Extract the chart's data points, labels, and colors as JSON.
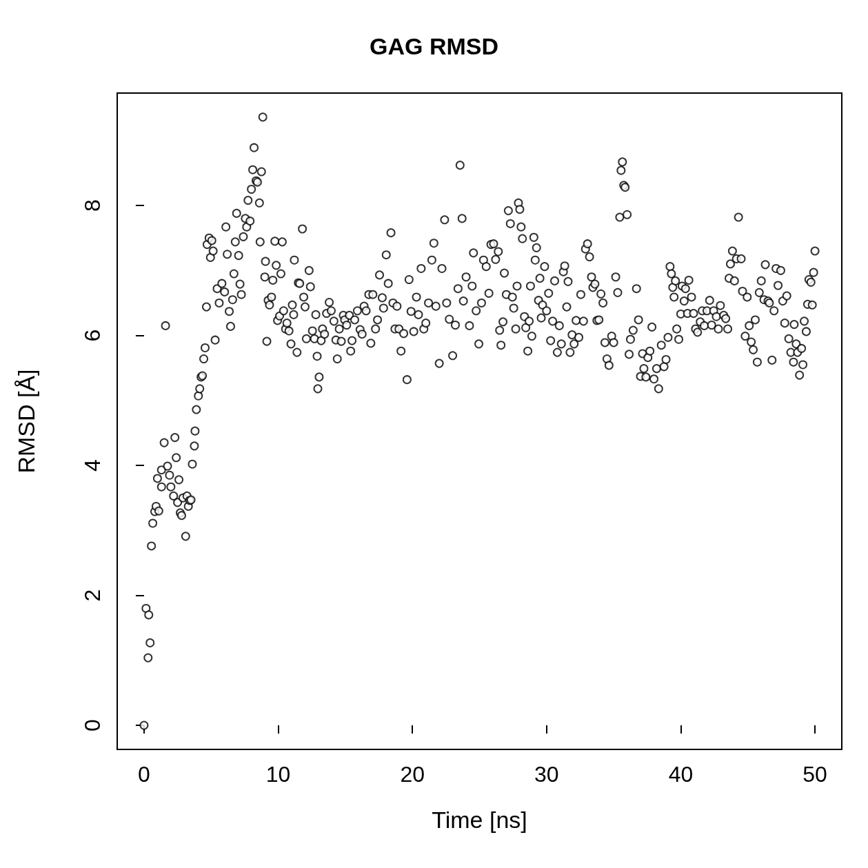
{
  "chart_data": {
    "type": "scatter",
    "title": "GAG RMSD",
    "xlabel": "Time [ns]",
    "ylabel": "RMSD [Å]",
    "marker": "circle",
    "color": "#000000",
    "xlim": [
      -2,
      52
    ],
    "ylim": [
      -0.37,
      9.73
    ],
    "xticks": [
      0,
      10,
      20,
      30,
      40,
      50
    ],
    "yticks": [
      0,
      2,
      4,
      6,
      8
    ],
    "x": [
      0,
      0.15,
      0.3,
      0.35,
      0.45,
      0.55,
      0.65,
      0.8,
      0.9,
      1.0,
      1.1,
      1.3,
      1.3,
      1.5,
      1.6,
      1.75,
      1.9,
      2.0,
      2.2,
      2.3,
      2.4,
      2.5,
      2.6,
      2.7,
      2.8,
      2.9,
      3.1,
      3.2,
      3.3,
      3.4,
      3.5,
      3.6,
      3.75,
      3.8,
      3.9,
      4.05,
      4.15,
      4.25,
      4.35,
      4.45,
      4.55,
      4.65,
      4.7,
      4.85,
      4.95,
      5.05,
      5.15,
      5.3,
      5.45,
      5.6,
      5.8,
      6.0,
      6.1,
      6.2,
      6.35,
      6.45,
      6.6,
      6.7,
      6.8,
      6.9,
      7.05,
      7.15,
      7.25,
      7.4,
      7.55,
      7.65,
      7.75,
      7.9,
      8.0,
      8.1,
      8.2,
      8.35,
      8.45,
      8.6,
      8.65,
      8.75,
      8.85,
      9.0,
      9.05,
      9.15,
      9.25,
      9.35,
      9.5,
      9.6,
      9.75,
      9.85,
      9.95,
      10.1,
      10.2,
      10.3,
      10.4,
      10.55,
      10.65,
      10.8,
      10.95,
      11.05,
      11.15,
      11.2,
      11.4,
      11.5,
      11.6,
      11.8,
      11.9,
      12.0,
      12.1,
      12.3,
      12.4,
      12.55,
      12.7,
      12.8,
      12.9,
      12.95,
      13.05,
      13.2,
      13.3,
      13.45,
      13.6,
      13.8,
      13.95,
      14.15,
      14.3,
      14.4,
      14.55,
      14.7,
      14.85,
      14.95,
      15.1,
      15.3,
      15.4,
      15.5,
      15.7,
      15.9,
      16.1,
      16.25,
      16.4,
      16.55,
      16.75,
      16.9,
      17.05,
      17.25,
      17.4,
      17.55,
      17.75,
      17.85,
      18.05,
      18.2,
      18.4,
      18.55,
      18.7,
      18.85,
      19.0,
      19.15,
      19.35,
      19.6,
      19.75,
      19.9,
      20.1,
      20.3,
      20.45,
      20.65,
      20.85,
      21.0,
      21.2,
      21.45,
      21.6,
      21.75,
      22.0,
      22.2,
      22.4,
      22.55,
      22.75,
      23.0,
      23.2,
      23.4,
      23.55,
      23.7,
      23.8,
      24.0,
      24.25,
      24.45,
      24.55,
      24.75,
      24.95,
      25.15,
      25.3,
      25.5,
      25.7,
      25.85,
      26.05,
      26.2,
      26.4,
      26.5,
      26.6,
      26.75,
      26.85,
      27.0,
      27.15,
      27.3,
      27.45,
      27.55,
      27.7,
      27.8,
      27.9,
      28.0,
      28.1,
      28.2,
      28.35,
      28.45,
      28.6,
      28.7,
      28.8,
      28.9,
      29.05,
      29.15,
      29.25,
      29.4,
      29.5,
      29.6,
      29.7,
      29.85,
      30.0,
      30.15,
      30.3,
      30.45,
      30.6,
      30.8,
      30.95,
      31.1,
      31.25,
      31.35,
      31.5,
      31.6,
      31.75,
      31.9,
      32.05,
      32.2,
      32.4,
      32.55,
      32.75,
      32.9,
      33.05,
      33.2,
      33.35,
      33.45,
      33.6,
      33.75,
      33.9,
      34.05,
      34.2,
      34.35,
      34.5,
      34.65,
      34.85,
      35.0,
      35.15,
      35.3,
      35.45,
      35.55,
      35.65,
      35.75,
      35.85,
      36.0,
      36.15,
      36.25,
      36.45,
      36.7,
      36.85,
      37.0,
      37.15,
      37.25,
      37.4,
      37.55,
      37.7,
      37.85,
      38.0,
      38.2,
      38.35,
      38.55,
      38.75,
      38.9,
      39.05,
      39.2,
      39.3,
      39.4,
      39.5,
      39.6,
      39.7,
      39.85,
      40.0,
      40.1,
      40.25,
      40.35,
      40.5,
      40.6,
      40.8,
      40.95,
      41.1,
      41.25,
      41.45,
      41.6,
      41.75,
      41.95,
      42.15,
      42.3,
      42.45,
      42.65,
      42.8,
      42.95,
      43.2,
      43.35,
      43.5,
      43.6,
      43.7,
      43.85,
      44.0,
      44.15,
      44.3,
      44.5,
      44.6,
      44.8,
      44.95,
      45.1,
      45.25,
      45.4,
      45.55,
      45.7,
      45.85,
      46.0,
      46.2,
      46.3,
      46.5,
      46.6,
      46.8,
      46.95,
      47.1,
      47.25,
      47.45,
      47.6,
      47.75,
      47.9,
      48.05,
      48.2,
      48.4,
      48.45,
      48.6,
      48.7,
      48.85,
      49.0,
      49.1,
      49.2,
      49.35,
      49.45,
      49.55,
      49.7,
      49.8,
      49.9,
      50.0
    ],
    "values": [
      0,
      1.8,
      1.04,
      1.7,
      1.27,
      2.76,
      3.11,
      3.29,
      3.37,
      3.8,
      3.3,
      3.67,
      3.93,
      4.35,
      6.15,
      3.99,
      3.85,
      3.67,
      3.53,
      4.43,
      4.12,
      3.43,
      3.78,
      3.27,
      3.23,
      3.5,
      2.91,
      3.53,
      3.37,
      3.46,
      3.47,
      4.02,
      4.3,
      4.53,
      4.86,
      5.07,
      5.18,
      5.36,
      5.38,
      5.64,
      5.81,
      6.44,
      7.4,
      7.5,
      7.2,
      7.46,
      7.3,
      5.93,
      6.72,
      6.5,
      6.8,
      6.67,
      7.67,
      7.25,
      6.37,
      6.14,
      6.55,
      6.95,
      7.44,
      7.88,
      7.23,
      6.79,
      6.63,
      7.52,
      7.8,
      7.67,
      8.08,
      7.76,
      8.25,
      8.55,
      8.89,
      8.38,
      8.36,
      8.04,
      7.44,
      8.52,
      9.36,
      6.9,
      7.14,
      5.91,
      6.54,
      6.47,
      6.59,
      6.85,
      7.45,
      7.08,
      6.23,
      6.3,
      6.95,
      7.44,
      6.38,
      6.1,
      6.19,
      6.07,
      5.87,
      6.47,
      6.32,
      7.16,
      5.74,
      6.81,
      6.8,
      7.64,
      6.59,
      6.44,
      5.95,
      7.0,
      6.75,
      6.07,
      5.95,
      6.32,
      5.68,
      5.18,
      5.36,
      5.92,
      6.1,
      6.02,
      6.34,
      6.51,
      6.38,
      6.22,
      5.93,
      5.64,
      6.1,
      5.91,
      6.31,
      6.24,
      6.16,
      6.31,
      5.76,
      5.92,
      6.24,
      6.38,
      6.09,
      6.02,
      6.45,
      6.38,
      6.63,
      5.88,
      6.63,
      6.1,
      6.24,
      6.93,
      6.58,
      6.42,
      7.24,
      6.8,
      7.58,
      6.5,
      6.1,
      6.45,
      6.1,
      5.76,
      6.03,
      5.32,
      6.86,
      6.37,
      6.06,
      6.59,
      6.32,
      7.03,
      6.1,
      6.19,
      6.5,
      7.16,
      7.42,
      6.45,
      5.57,
      7.03,
      7.78,
      6.5,
      6.25,
      5.69,
      6.16,
      6.72,
      8.62,
      7.8,
      6.53,
      6.9,
      6.15,
      6.76,
      7.27,
      6.38,
      5.87,
      6.5,
      7.16,
      7.06,
      6.65,
      7.4,
      7.41,
      7.17,
      7.29,
      6.08,
      5.85,
      6.21,
      6.96,
      6.63,
      7.92,
      7.72,
      6.59,
      6.42,
      6.1,
      6.76,
      8.04,
      7.94,
      7.67,
      7.49,
      6.29,
      6.12,
      5.76,
      6.22,
      6.76,
      5.99,
      7.51,
      7.16,
      7.35,
      6.54,
      6.88,
      6.27,
      6.47,
      7.06,
      6.38,
      6.65,
      5.92,
      6.22,
      6.84,
      5.74,
      6.15,
      5.87,
      6.98,
      7.07,
      6.44,
      6.83,
      5.74,
      6.01,
      5.87,
      6.23,
      5.97,
      6.63,
      6.22,
      7.33,
      7.41,
      7.21,
      6.9,
      6.74,
      6.79,
      6.23,
      6.24,
      6.64,
      6.5,
      5.89,
      5.64,
      5.54,
      5.99,
      5.89,
      6.9,
      6.66,
      7.82,
      8.54,
      8.67,
      8.31,
      8.28,
      7.86,
      5.71,
      5.94,
      6.08,
      6.72,
      6.24,
      5.37,
      5.72,
      5.49,
      5.36,
      5.66,
      5.76,
      6.13,
      5.33,
      5.49,
      5.18,
      5.85,
      5.52,
      5.63,
      5.97,
      7.06,
      6.95,
      6.74,
      6.59,
      6.84,
      6.1,
      5.94,
      6.33,
      6.76,
      6.53,
      6.72,
      6.34,
      6.85,
      6.59,
      6.34,
      6.1,
      6.05,
      6.21,
      6.38,
      6.15,
      6.38,
      6.54,
      6.16,
      6.38,
      6.29,
      6.1,
      6.46,
      6.31,
      6.26,
      6.1,
      6.88,
      7.1,
      7.3,
      6.84,
      7.18,
      7.82,
      7.18,
      6.68,
      5.99,
      6.59,
      6.15,
      5.9,
      5.78,
      6.24,
      5.59,
      6.66,
      6.84,
      6.55,
      7.09,
      6.53,
      6.5,
      5.62,
      6.38,
      7.03,
      6.77,
      7.0,
      6.53,
      6.19,
      6.61,
      5.95,
      5.74,
      5.59,
      6.17,
      5.87,
      5.74,
      5.39,
      5.8,
      5.55,
      6.22,
      6.06,
      6.48,
      6.86,
      6.82,
      6.47,
      6.97,
      7.3
    ]
  }
}
